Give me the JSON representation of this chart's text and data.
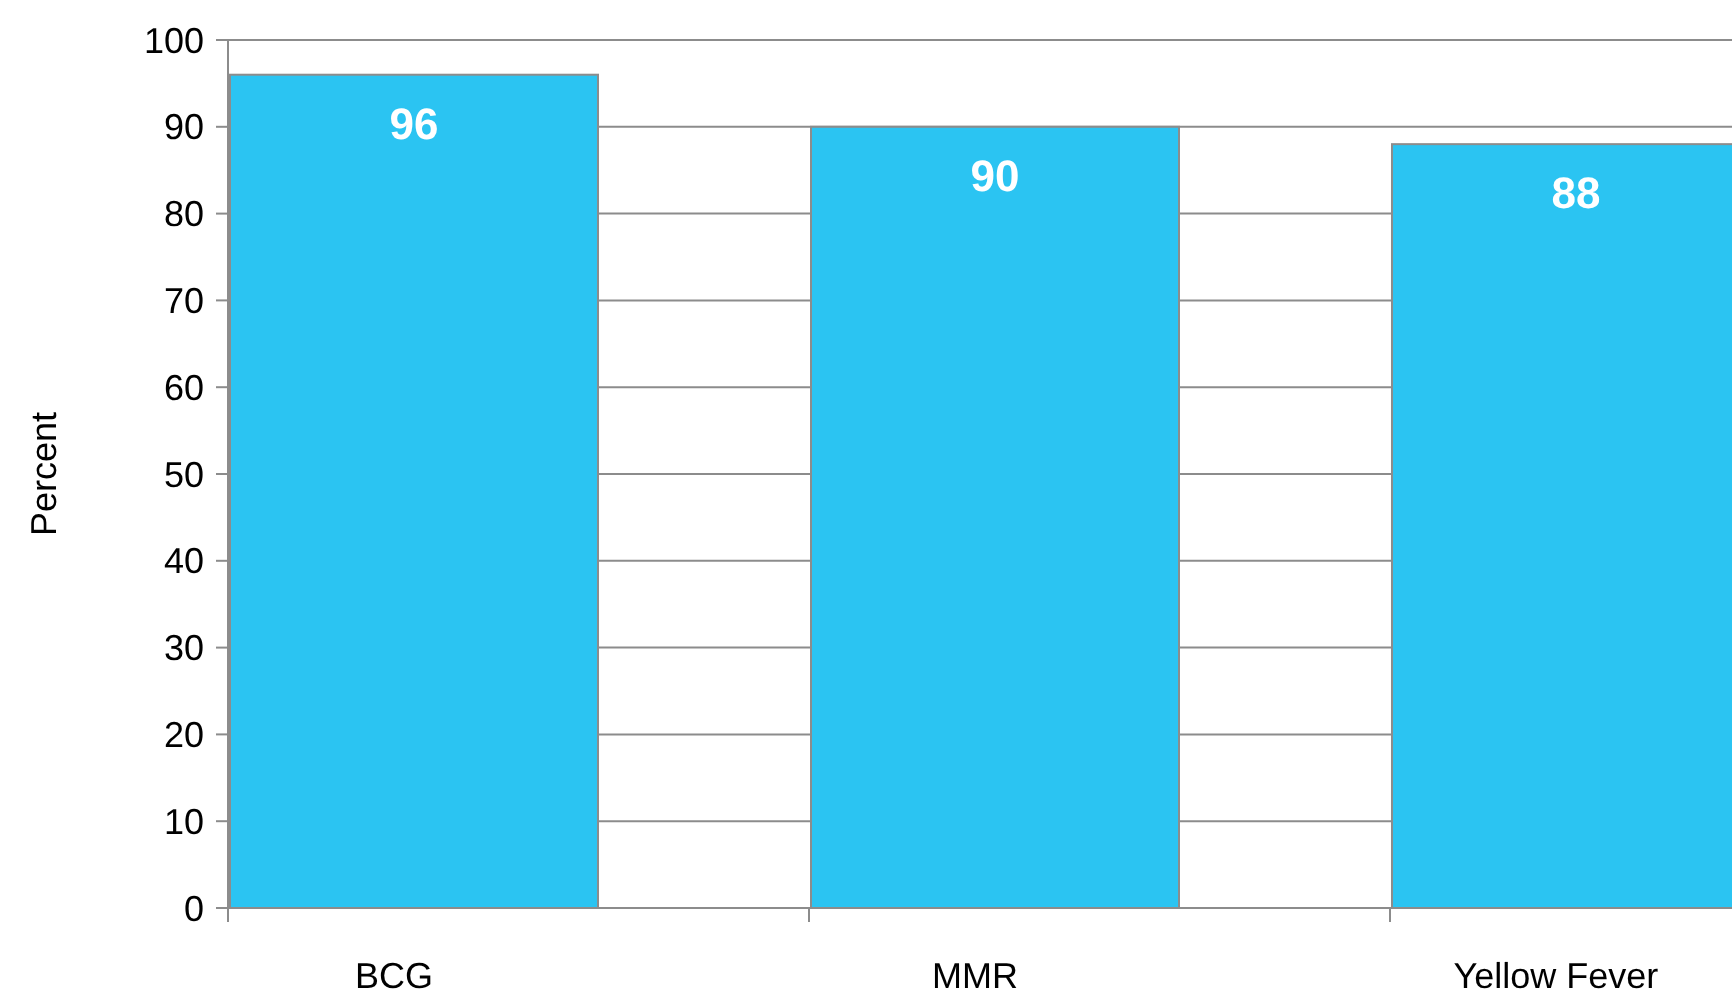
{
  "chart_data": {
    "type": "bar",
    "ylabel": "Percent",
    "categories": [
      "BCG",
      "MMR",
      "Yellow Fever"
    ],
    "values": [
      96,
      90,
      88
    ],
    "color": "#2bc4f2",
    "ylim": [
      0,
      100
    ],
    "yticks": [
      0,
      10,
      20,
      30,
      40,
      50,
      60,
      70,
      80,
      90,
      100
    ],
    "grid": "y",
    "data_labels": true
  }
}
